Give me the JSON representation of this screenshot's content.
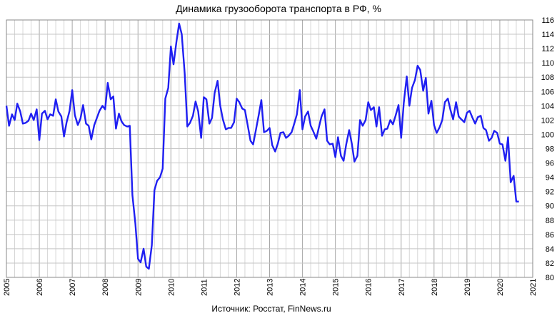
{
  "chart_data": {
    "type": "line",
    "title": "Динамика грузооборота транспорта в РФ, %",
    "source": "Источник: Росстат, FinNews.ru",
    "x_ticks": [
      "2005",
      "2006",
      "2007",
      "2008",
      "2009",
      "2010",
      "2011",
      "2012",
      "2013",
      "2014",
      "2015",
      "2016",
      "2017",
      "2018",
      "2019",
      "2020",
      "2021"
    ],
    "y_ticks": [
      "80",
      "82",
      "84",
      "86",
      "88",
      "90",
      "92",
      "94",
      "96",
      "98",
      "100",
      "102",
      "104",
      "106",
      "108",
      "110",
      "112",
      "114",
      "116"
    ],
    "xlim": [
      2005,
      2021
    ],
    "ylim": [
      80,
      116
    ],
    "grid": true,
    "y_axis_position": "right",
    "line_color": "#1f1ff2",
    "series": [
      {
        "values": [
          [
            2005.0,
            104.0
          ],
          [
            2005.08,
            101.2
          ],
          [
            2005.17,
            102.8
          ],
          [
            2005.25,
            102.0
          ],
          [
            2005.33,
            104.3
          ],
          [
            2005.42,
            103.2
          ],
          [
            2005.5,
            101.5
          ],
          [
            2005.58,
            101.6
          ],
          [
            2005.67,
            101.9
          ],
          [
            2005.75,
            102.9
          ],
          [
            2005.83,
            102.0
          ],
          [
            2005.92,
            103.5
          ],
          [
            2006.0,
            99.2
          ],
          [
            2006.08,
            102.9
          ],
          [
            2006.17,
            103.3
          ],
          [
            2006.25,
            102.1
          ],
          [
            2006.33,
            102.8
          ],
          [
            2006.42,
            102.6
          ],
          [
            2006.5,
            104.9
          ],
          [
            2006.58,
            103.2
          ],
          [
            2006.67,
            102.5
          ],
          [
            2006.75,
            99.7
          ],
          [
            2006.83,
            101.7
          ],
          [
            2006.92,
            103.3
          ],
          [
            2007.0,
            106.2
          ],
          [
            2007.08,
            102.7
          ],
          [
            2007.17,
            101.3
          ],
          [
            2007.25,
            102.2
          ],
          [
            2007.33,
            104.1
          ],
          [
            2007.42,
            101.5
          ],
          [
            2007.5,
            101.2
          ],
          [
            2007.58,
            99.3
          ],
          [
            2007.67,
            101.3
          ],
          [
            2007.75,
            102.3
          ],
          [
            2007.83,
            103.3
          ],
          [
            2007.92,
            104.0
          ],
          [
            2008.0,
            103.5
          ],
          [
            2008.08,
            107.2
          ],
          [
            2008.17,
            104.9
          ],
          [
            2008.25,
            105.3
          ],
          [
            2008.33,
            100.8
          ],
          [
            2008.42,
            102.9
          ],
          [
            2008.5,
            101.8
          ],
          [
            2008.58,
            101.3
          ],
          [
            2008.67,
            101.1
          ],
          [
            2008.75,
            101.2
          ],
          [
            2008.83,
            91.5
          ],
          [
            2008.92,
            87.5
          ],
          [
            2009.0,
            82.6
          ],
          [
            2009.08,
            82.1
          ],
          [
            2009.17,
            84.0
          ],
          [
            2009.25,
            81.5
          ],
          [
            2009.33,
            81.2
          ],
          [
            2009.42,
            84.5
          ],
          [
            2009.5,
            92.2
          ],
          [
            2009.58,
            93.5
          ],
          [
            2009.67,
            94.0
          ],
          [
            2009.75,
            95.2
          ],
          [
            2009.83,
            105.0
          ],
          [
            2009.92,
            106.5
          ],
          [
            2010.0,
            112.3
          ],
          [
            2010.08,
            109.8
          ],
          [
            2010.17,
            113.0
          ],
          [
            2010.25,
            115.5
          ],
          [
            2010.33,
            114.0
          ],
          [
            2010.42,
            108.5
          ],
          [
            2010.5,
            101.1
          ],
          [
            2010.58,
            101.6
          ],
          [
            2010.67,
            102.6
          ],
          [
            2010.75,
            104.6
          ],
          [
            2010.83,
            103.2
          ],
          [
            2010.92,
            99.5
          ],
          [
            2011.0,
            105.2
          ],
          [
            2011.08,
            104.9
          ],
          [
            2011.17,
            101.5
          ],
          [
            2011.25,
            102.3
          ],
          [
            2011.33,
            105.8
          ],
          [
            2011.42,
            107.5
          ],
          [
            2011.5,
            104.0
          ],
          [
            2011.58,
            102.1
          ],
          [
            2011.67,
            100.7
          ],
          [
            2011.75,
            100.9
          ],
          [
            2011.83,
            100.9
          ],
          [
            2011.92,
            101.7
          ],
          [
            2012.0,
            105.0
          ],
          [
            2012.08,
            104.5
          ],
          [
            2012.17,
            103.6
          ],
          [
            2012.25,
            103.4
          ],
          [
            2012.33,
            101.4
          ],
          [
            2012.42,
            99.1
          ],
          [
            2012.5,
            98.6
          ],
          [
            2012.58,
            100.5
          ],
          [
            2012.67,
            102.7
          ],
          [
            2012.75,
            104.8
          ],
          [
            2012.83,
            100.3
          ],
          [
            2012.92,
            100.5
          ],
          [
            2013.0,
            100.9
          ],
          [
            2013.08,
            98.5
          ],
          [
            2013.17,
            97.6
          ],
          [
            2013.25,
            98.7
          ],
          [
            2013.33,
            100.2
          ],
          [
            2013.42,
            100.3
          ],
          [
            2013.5,
            99.5
          ],
          [
            2013.58,
            99.8
          ],
          [
            2013.67,
            100.3
          ],
          [
            2013.75,
            101.5
          ],
          [
            2013.83,
            102.8
          ],
          [
            2013.92,
            106.2
          ],
          [
            2014.0,
            100.7
          ],
          [
            2014.08,
            102.5
          ],
          [
            2014.17,
            103.2
          ],
          [
            2014.25,
            101.2
          ],
          [
            2014.33,
            100.4
          ],
          [
            2014.42,
            99.4
          ],
          [
            2014.5,
            101.0
          ],
          [
            2014.58,
            102.5
          ],
          [
            2014.67,
            103.5
          ],
          [
            2014.75,
            99.1
          ],
          [
            2014.83,
            98.6
          ],
          [
            2014.92,
            98.7
          ],
          [
            2015.0,
            96.8
          ],
          [
            2015.08,
            99.6
          ],
          [
            2015.17,
            97.0
          ],
          [
            2015.25,
            96.3
          ],
          [
            2015.33,
            98.6
          ],
          [
            2015.42,
            100.6
          ],
          [
            2015.5,
            98.7
          ],
          [
            2015.58,
            96.2
          ],
          [
            2015.67,
            97.0
          ],
          [
            2015.75,
            102.0
          ],
          [
            2015.83,
            101.2
          ],
          [
            2015.92,
            102.0
          ],
          [
            2016.0,
            104.5
          ],
          [
            2016.08,
            103.4
          ],
          [
            2016.17,
            103.8
          ],
          [
            2016.25,
            101.1
          ],
          [
            2016.33,
            103.8
          ],
          [
            2016.42,
            99.8
          ],
          [
            2016.5,
            100.7
          ],
          [
            2016.58,
            100.8
          ],
          [
            2016.67,
            102.0
          ],
          [
            2016.75,
            101.4
          ],
          [
            2016.83,
            102.6
          ],
          [
            2016.92,
            104.1
          ],
          [
            2017.0,
            99.5
          ],
          [
            2017.08,
            104.4
          ],
          [
            2017.17,
            108.1
          ],
          [
            2017.25,
            104.0
          ],
          [
            2017.33,
            106.5
          ],
          [
            2017.42,
            107.6
          ],
          [
            2017.5,
            109.6
          ],
          [
            2017.58,
            109.0
          ],
          [
            2017.67,
            106.1
          ],
          [
            2017.75,
            107.9
          ],
          [
            2017.83,
            102.9
          ],
          [
            2017.92,
            104.7
          ],
          [
            2018.0,
            101.3
          ],
          [
            2018.08,
            100.2
          ],
          [
            2018.17,
            101.0
          ],
          [
            2018.25,
            102.0
          ],
          [
            2018.33,
            104.5
          ],
          [
            2018.42,
            105.0
          ],
          [
            2018.5,
            103.4
          ],
          [
            2018.58,
            102.1
          ],
          [
            2018.67,
            104.5
          ],
          [
            2018.75,
            102.5
          ],
          [
            2018.83,
            102.1
          ],
          [
            2018.92,
            101.7
          ],
          [
            2019.0,
            103.0
          ],
          [
            2019.08,
            103.3
          ],
          [
            2019.17,
            102.3
          ],
          [
            2019.25,
            101.5
          ],
          [
            2019.33,
            102.4
          ],
          [
            2019.42,
            102.6
          ],
          [
            2019.5,
            100.9
          ],
          [
            2019.58,
            100.6
          ],
          [
            2019.67,
            99.1
          ],
          [
            2019.75,
            99.5
          ],
          [
            2019.83,
            100.5
          ],
          [
            2019.92,
            100.2
          ],
          [
            2020.0,
            98.7
          ],
          [
            2020.08,
            98.6
          ],
          [
            2020.17,
            96.3
          ],
          [
            2020.25,
            99.6
          ],
          [
            2020.33,
            93.3
          ],
          [
            2020.42,
            94.2
          ],
          [
            2020.5,
            90.6
          ],
          [
            2020.58,
            90.6
          ]
        ]
      }
    ]
  }
}
